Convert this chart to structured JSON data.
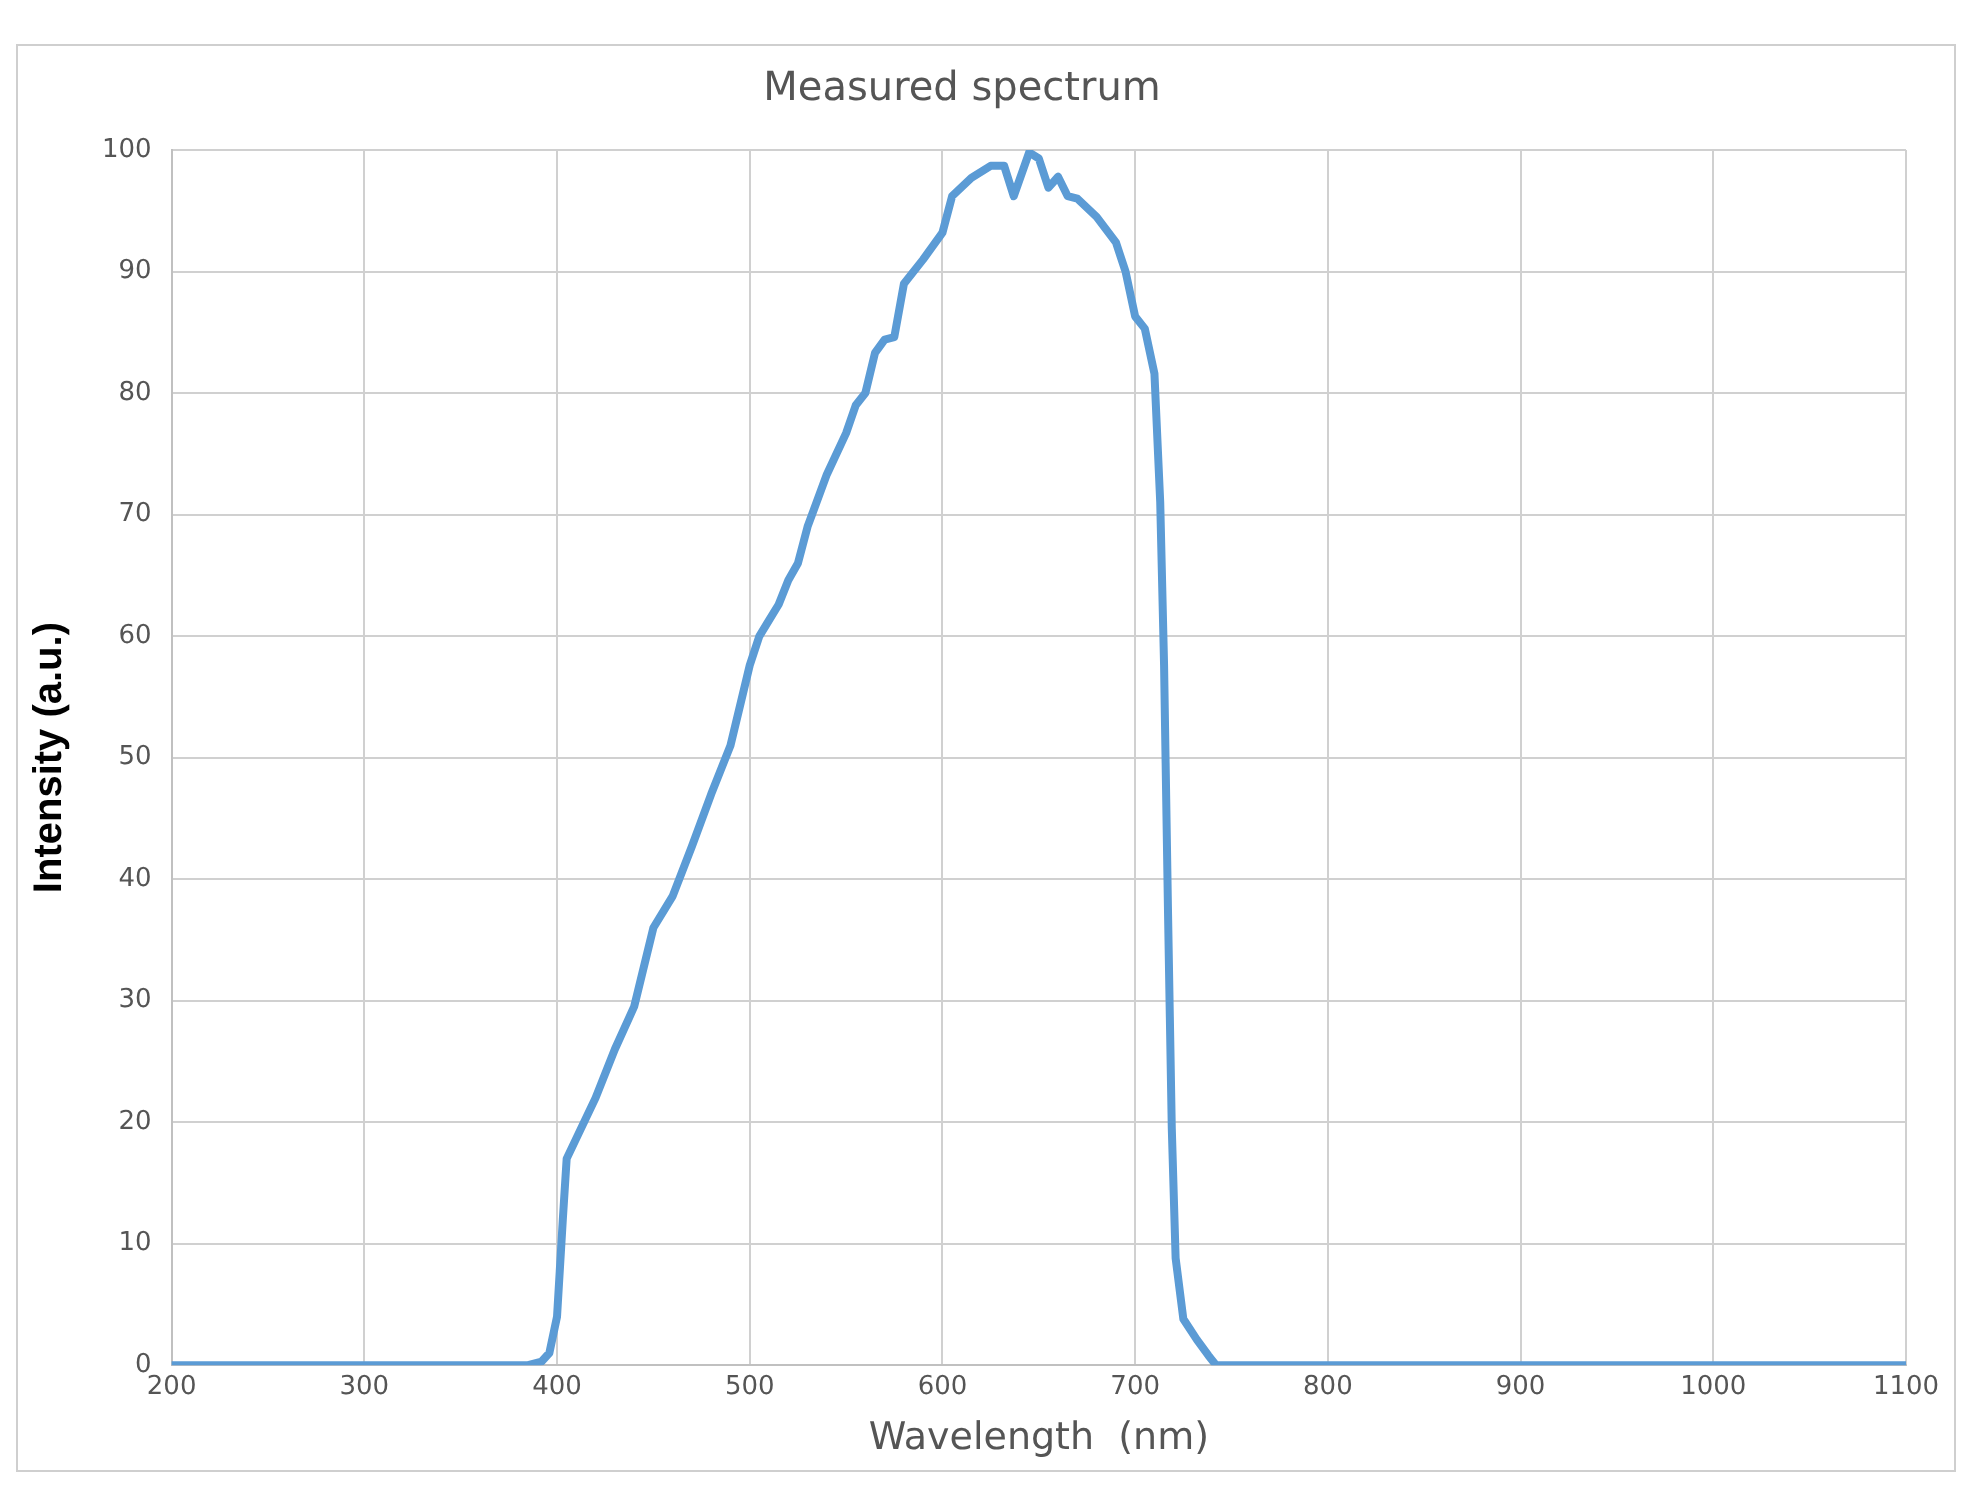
{
  "chart_data": {
    "type": "line",
    "title": "Measured spectrum",
    "xlabel": "Wavelength  (nm)",
    "ylabel": "Intensity (a.u.)",
    "x": [
      200,
      300,
      385,
      392,
      396,
      400,
      403,
      405,
      420,
      430,
      440,
      450,
      460,
      470,
      480,
      490,
      500,
      505,
      515,
      520,
      525,
      530,
      540,
      550,
      555,
      560,
      565,
      570,
      575,
      580,
      590,
      600,
      605,
      615,
      625,
      632,
      637,
      645,
      650,
      655,
      660,
      665,
      670,
      680,
      690,
      695,
      700,
      705,
      710,
      713,
      715,
      717,
      719,
      721,
      725,
      732,
      738,
      742,
      800,
      1100
    ],
    "series": [
      {
        "color": "#5b9bd5",
        "values": [
          0,
          0,
          0,
          0.3,
          1,
          4,
          12,
          17,
          22,
          26,
          29.5,
          36,
          38.6,
          42.7,
          47,
          51,
          57.6,
          60,
          62.6,
          64.6,
          66,
          69,
          73.3,
          76.7,
          79,
          80,
          83.3,
          84.4,
          84.6,
          89,
          91,
          93.2,
          96.2,
          97.7,
          98.7,
          98.7,
          96.2,
          99.8,
          99.3,
          96.9,
          97.8,
          96.2,
          96,
          94.5,
          92.4,
          90,
          86.3,
          85.3,
          81.6,
          71,
          57.6,
          37.7,
          19.5,
          8.8,
          3.8,
          2.1,
          0.8,
          0,
          0,
          0
        ]
      }
    ],
    "xlim": [
      200,
      1100
    ],
    "xticks": [
      200,
      300,
      400,
      500,
      600,
      700,
      800,
      900,
      1000,
      1100
    ],
    "ylim": [
      0,
      100
    ],
    "yticks": [
      0,
      10,
      20,
      30,
      40,
      50,
      60,
      70,
      80,
      90,
      100
    ],
    "grid": true,
    "legend": false,
    "marker": "none",
    "line_style": "solid"
  }
}
